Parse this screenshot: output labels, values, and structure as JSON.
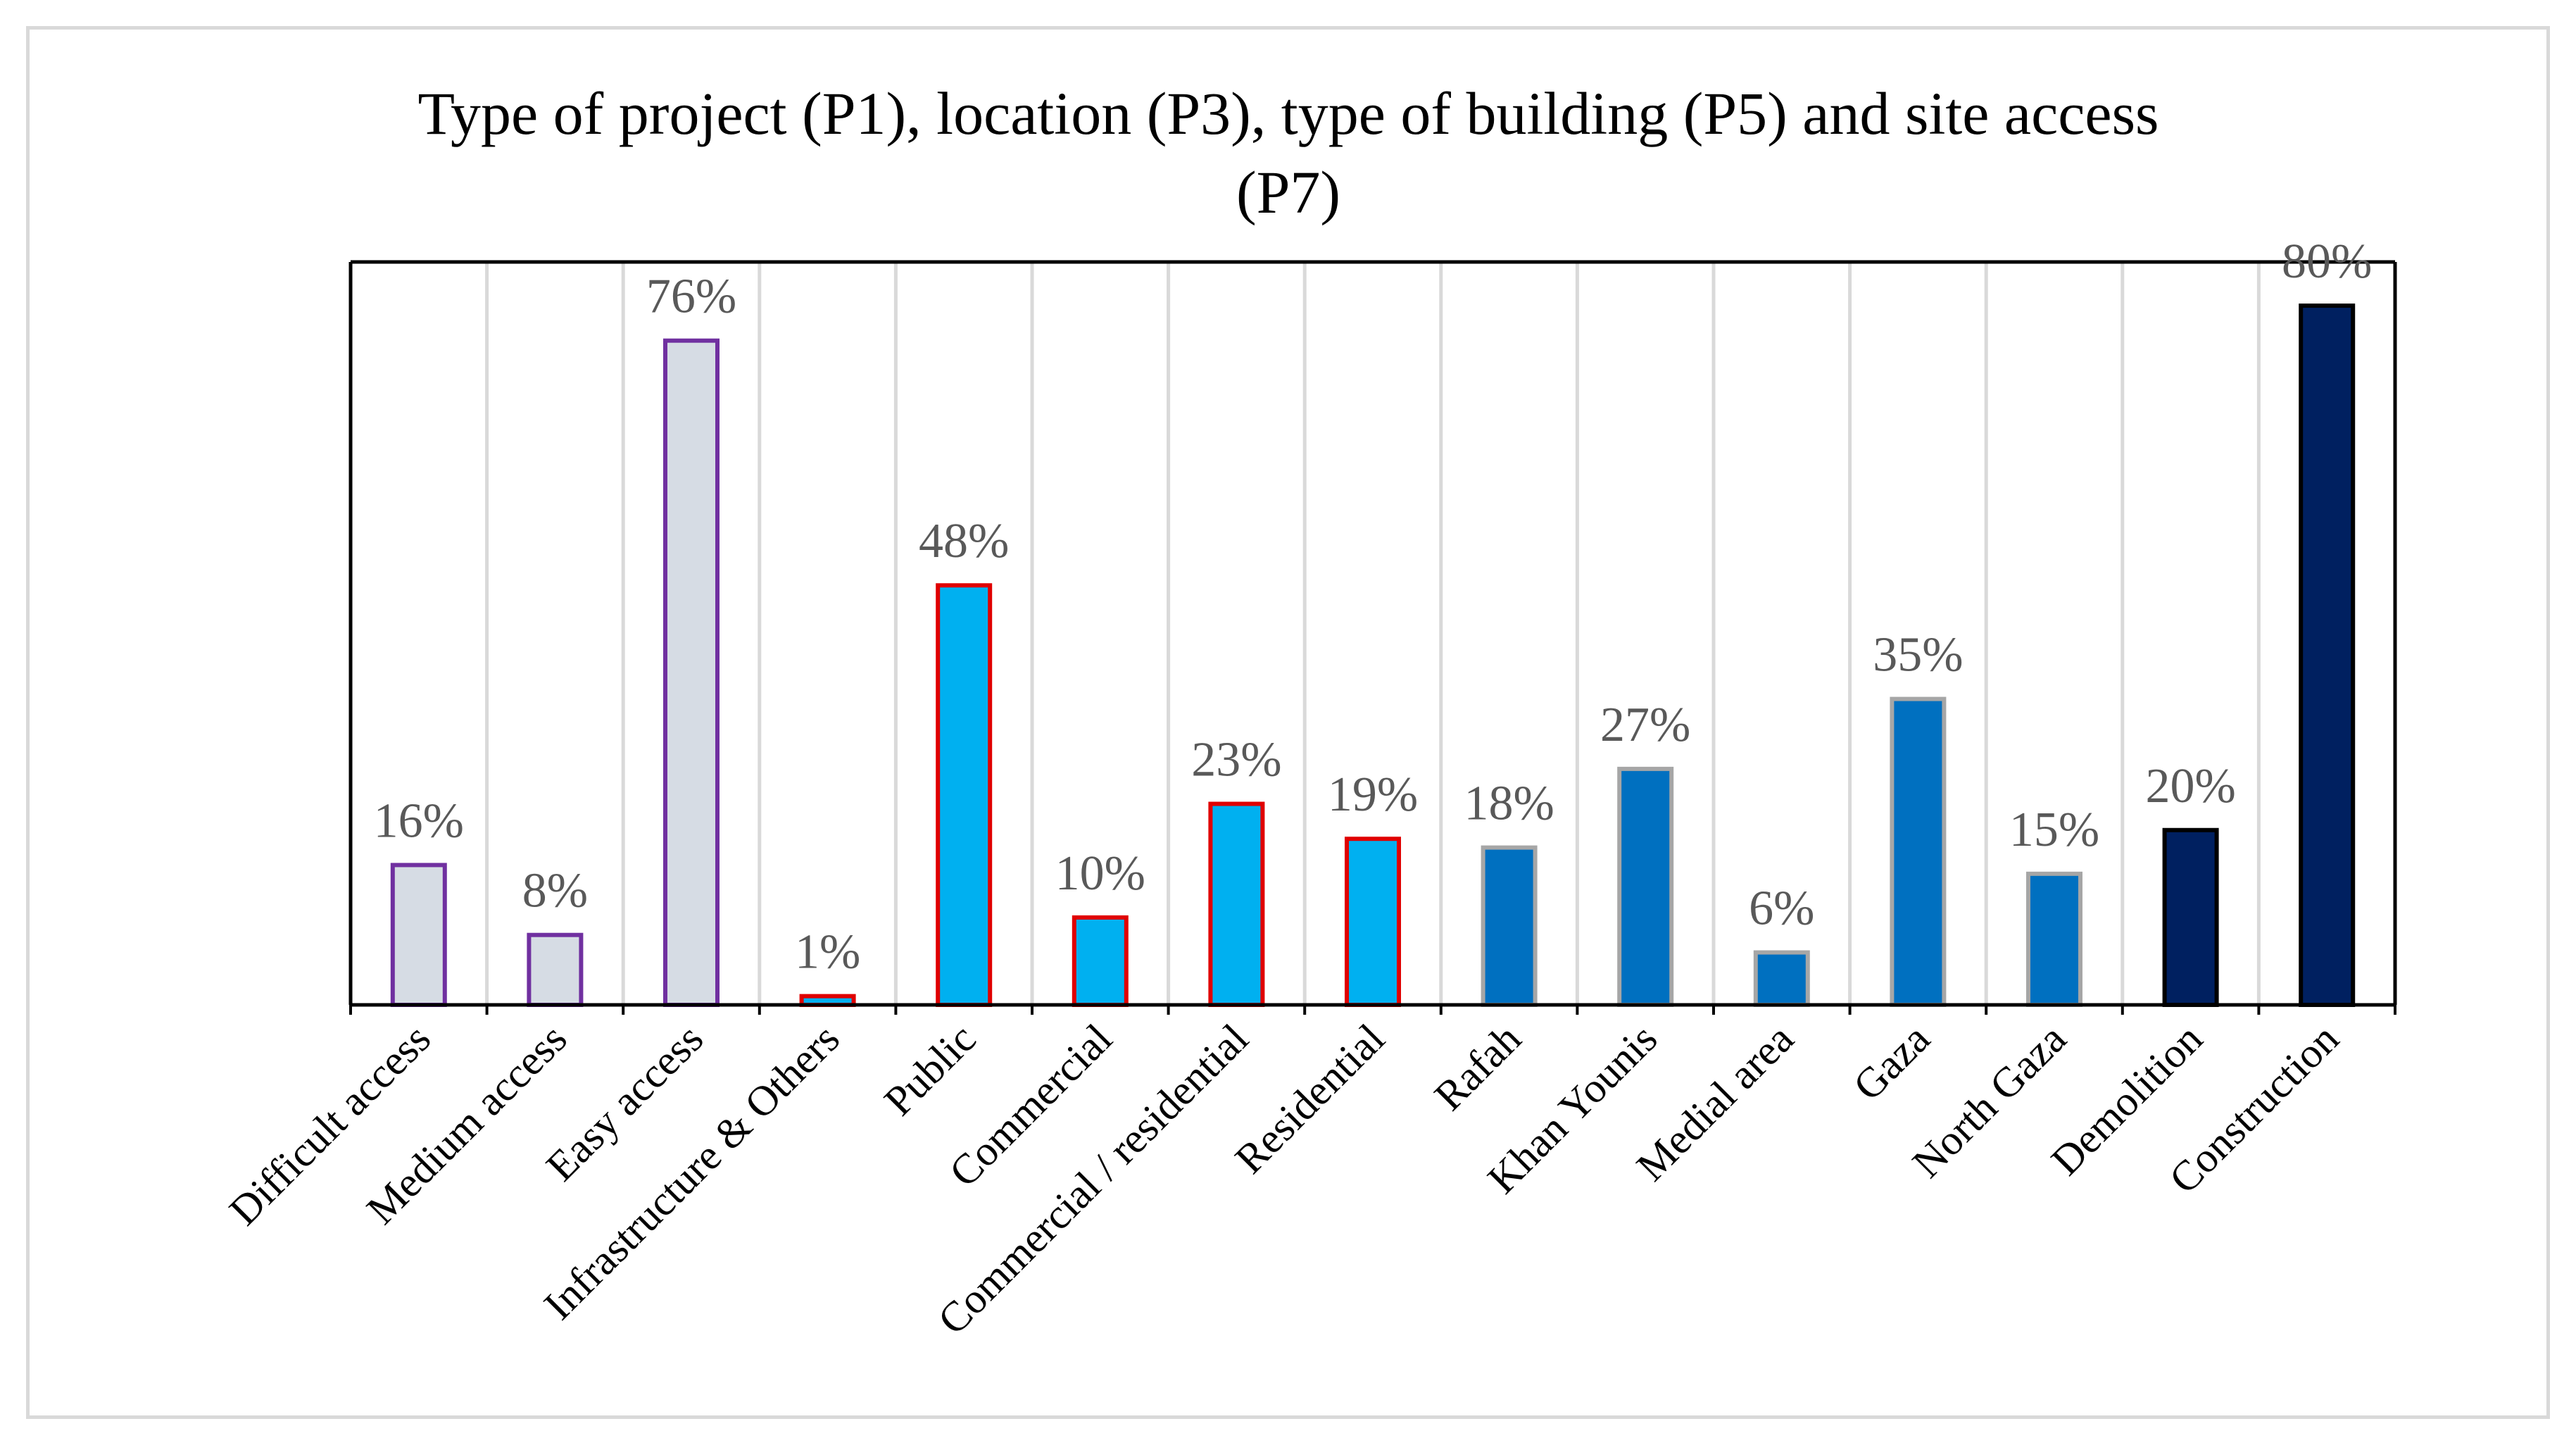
{
  "chart_data": {
    "type": "bar",
    "title": "Type of project (P1), location (P3), type of building (P5) and site access (P7)",
    "title_lines": [
      "Type of project (P1), location (P3), type of building (P5) and site access",
      "(P7)"
    ],
    "xlabel": "",
    "ylabel": "",
    "ylim": [
      0,
      85
    ],
    "grid": "vertical",
    "legend": "none",
    "categories": [
      "Difficult access",
      "Medium access",
      "Easy access",
      "Infrastructure & Others",
      "Public",
      "Commercial",
      "Commercial / residential",
      "Residential",
      "Rafah",
      "Khan Younis",
      "Medial area",
      "Gaza",
      "North Gaza",
      "Demolition",
      "Construction"
    ],
    "values": [
      16,
      8,
      76,
      1,
      48,
      10,
      23,
      19,
      18,
      27,
      6,
      35,
      15,
      20,
      80
    ],
    "value_labels": [
      "16%",
      "8%",
      "76%",
      "1%",
      "48%",
      "10%",
      "23%",
      "19%",
      "18%",
      "27%",
      "6%",
      "35%",
      "15%",
      "20%",
      "80%"
    ],
    "groups": [
      {
        "name": "Site access (P7)",
        "indices": [
          0,
          1,
          2
        ],
        "fill": "#d6dce4",
        "stroke": "#7030a0"
      },
      {
        "name": "Type of building (P5)",
        "indices": [
          3,
          4,
          5,
          6,
          7
        ],
        "fill": "#00b0f0",
        "stroke": "#e00000"
      },
      {
        "name": "Location (P3)",
        "indices": [
          8,
          9,
          10,
          11,
          12
        ],
        "fill": "#0070c0",
        "stroke": "#a6a6a6"
      },
      {
        "name": "Type of project (P1)",
        "indices": [
          13,
          14
        ],
        "fill": "#002060",
        "stroke": "#000000"
      }
    ]
  }
}
